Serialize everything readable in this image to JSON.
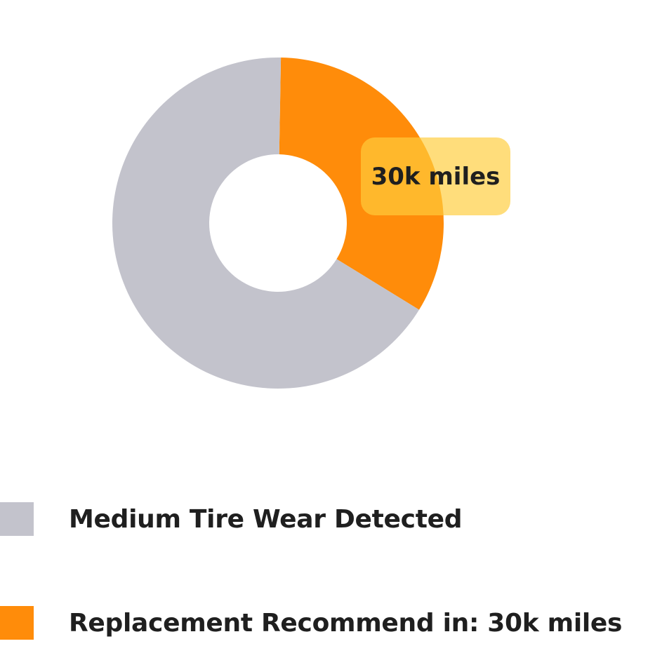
{
  "chart_data": {
    "type": "pie",
    "variant": "donut",
    "series": [
      {
        "name": "Medium Tire Wear Detected",
        "value": 66.5,
        "color": "#c3c3cc"
      },
      {
        "name": "Replacement Recommend in: 30k miles",
        "value": 33.5,
        "color": "#ff8c0a"
      }
    ],
    "annotation": {
      "text": "30k miles",
      "target_series": 1,
      "color": "#ffcd3c"
    },
    "legend_position": "bottom-left",
    "title": "",
    "xlabel": "",
    "ylabel": ""
  }
}
